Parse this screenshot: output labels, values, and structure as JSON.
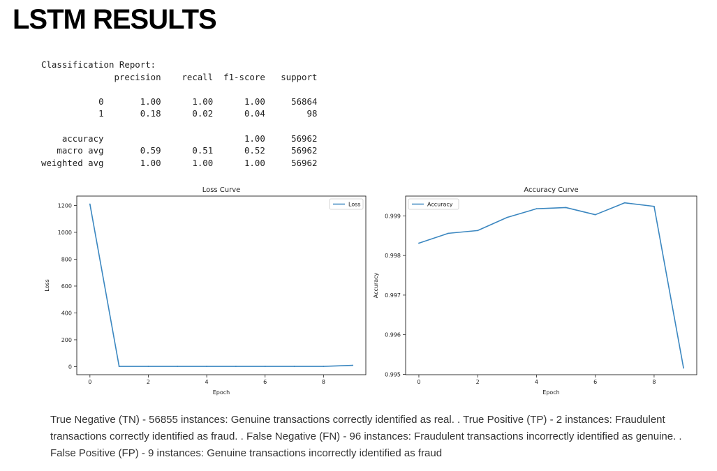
{
  "page": {
    "title": "LSTM RESULTS"
  },
  "report": {
    "heading": "Classification Report:",
    "columns": [
      "precision",
      "recall",
      "f1-score",
      "support"
    ],
    "rows": [
      {
        "label": "0",
        "precision": "1.00",
        "recall": "1.00",
        "f1": "1.00",
        "support": "56864"
      },
      {
        "label": "1",
        "precision": "0.18",
        "recall": "0.02",
        "f1": "0.04",
        "support": "98"
      },
      {
        "label": "accuracy",
        "precision": "",
        "recall": "",
        "f1": "1.00",
        "support": "56962"
      },
      {
        "label": "macro avg",
        "precision": "0.59",
        "recall": "0.51",
        "f1": "0.52",
        "support": "56962"
      },
      {
        "label": "weighted avg",
        "precision": "1.00",
        "recall": "1.00",
        "f1": "1.00",
        "support": "56962"
      }
    ]
  },
  "chart_data": [
    {
      "type": "line",
      "title": "Loss Curve",
      "xlabel": "Epoch",
      "ylabel": "Loss",
      "x": [
        0,
        1,
        2,
        3,
        4,
        5,
        6,
        7,
        8,
        9
      ],
      "series": [
        {
          "name": "Loss",
          "values": [
            1210,
            2,
            2,
            2,
            2,
            2,
            2,
            2,
            2,
            10
          ]
        }
      ],
      "xlim": [
        -0.45,
        9.45
      ],
      "ylim": [
        -60,
        1270
      ],
      "xticks": [
        0,
        2,
        4,
        6,
        8
      ],
      "yticks": [
        0,
        200,
        400,
        600,
        800,
        1000,
        1200
      ],
      "ytick_labels": [
        "0",
        "200",
        "400",
        "600",
        "800",
        "1000",
        "1200"
      ],
      "legend": "upper right",
      "grid": false,
      "color": "#3b87c0"
    },
    {
      "type": "line",
      "title": "Accuracy Curve",
      "xlabel": "Epoch",
      "ylabel": "Accuracy",
      "x": [
        0,
        1,
        2,
        3,
        4,
        5,
        6,
        7,
        8,
        9
      ],
      "series": [
        {
          "name": "Accuracy",
          "values": [
            0.99831,
            0.99856,
            0.99863,
            0.99896,
            0.99918,
            0.99921,
            0.99903,
            0.99933,
            0.99924,
            0.99516
          ]
        }
      ],
      "xlim": [
        -0.45,
        9.45
      ],
      "ylim": [
        0.99499,
        0.9995
      ],
      "xticks": [
        0,
        2,
        4,
        6,
        8
      ],
      "yticks": [
        0.995,
        0.996,
        0.997,
        0.998,
        0.999
      ],
      "ytick_labels": [
        "0.995",
        "0.996",
        "0.997",
        "0.998",
        "0.999"
      ],
      "legend": "upper left",
      "grid": false,
      "color": "#3b87c0"
    }
  ],
  "caption": "True Negative (TN) - 56855 instances: Genuine transactions correctly identified as real. . True Positive (TP) - 2 instances: Fraudulent transactions correctly identified as fraud. . False Negative (FN) - 96 instances: Fraudulent transactions incorrectly identified as genuine. . False Positive (FP) - 9 instances: Genuine transactions incorrectly identified as fraud"
}
